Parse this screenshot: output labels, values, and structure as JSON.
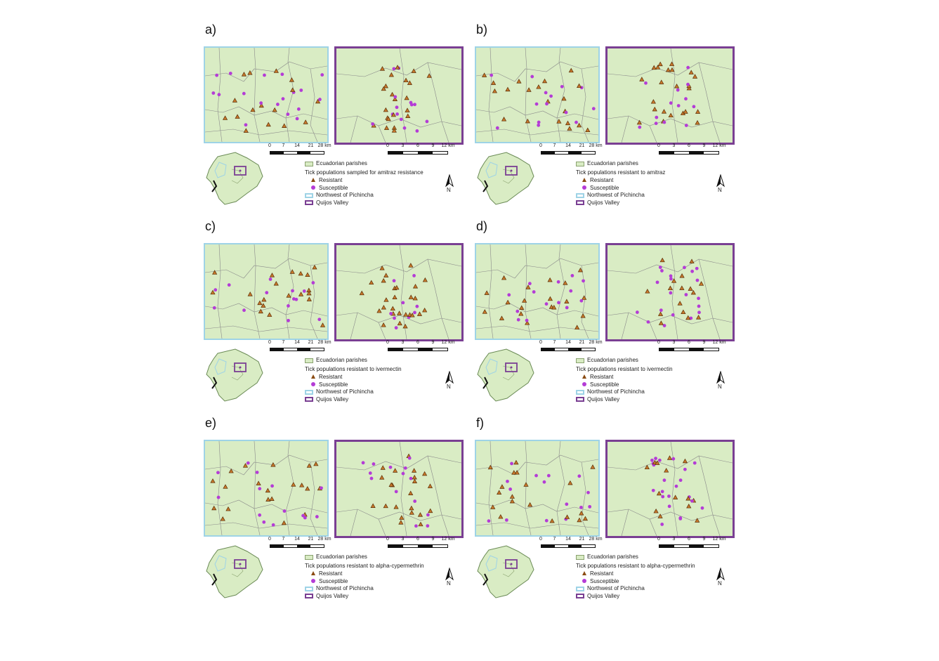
{
  "panels": [
    {
      "id": "a",
      "label": "a)",
      "left": 290,
      "top": 38,
      "seed": 11,
      "legend_title": "Tick populations sampled for amitraz resistance"
    },
    {
      "id": "b",
      "label": "b)",
      "left": 676,
      "top": 38,
      "seed": 23,
      "legend_title": "Tick populations resistant to amitraz"
    },
    {
      "id": "c",
      "label": "c)",
      "left": 290,
      "top": 318,
      "seed": 37,
      "legend_title": "Tick populations resistant to ivermectin"
    },
    {
      "id": "d",
      "label": "d)",
      "left": 676,
      "top": 318,
      "seed": 41,
      "legend_title": "Tick populations resistant to ivermectin"
    },
    {
      "id": "e",
      "label": "e)",
      "left": 290,
      "top": 598,
      "seed": 53,
      "legend_title": "Tick populations resistant to alpha-cypermethrin"
    },
    {
      "id": "f",
      "label": "f)",
      "left": 676,
      "top": 598,
      "seed": 67,
      "legend_title": "Tick populations resistant to alpha-cypermethrin"
    }
  ],
  "legend": {
    "parishes": "Ecuadorian parishes",
    "resistant": "Resistant",
    "susceptible": "Susceptible",
    "northwest": "Northwest of Pichincha",
    "quijos": "Quijos Valley"
  },
  "scale_nw": {
    "ticks": [
      "0",
      "7",
      "14",
      "21",
      "28 km"
    ]
  },
  "scale_qv": {
    "ticks": [
      "0",
      "3",
      "6",
      "9",
      "12 km"
    ]
  },
  "north_label": "N",
  "colors": {
    "parish_fill": "#d9ecc4",
    "resistant": "#c8782a",
    "susceptible": "#b43cd6",
    "northwest_border": "#9ed3e6",
    "quijos_border": "#7a3f93"
  }
}
